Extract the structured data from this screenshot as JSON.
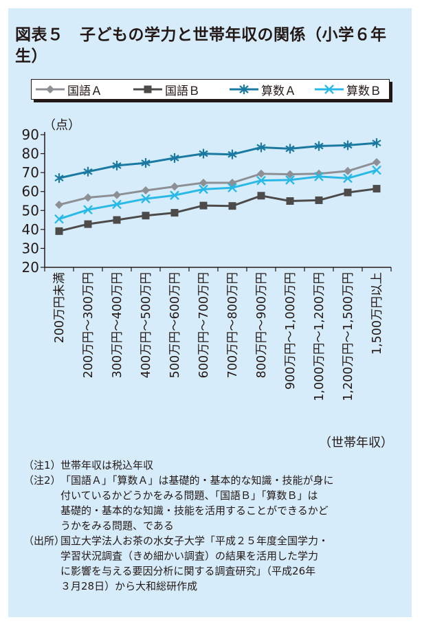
{
  "title": "図表５　子どもの学力と世帯年収の関係（小学６年生）",
  "colors": {
    "background": "#d6ecfa",
    "kokugo_a": "#8c8f93",
    "kokugo_b": "#4d4b4a",
    "sansu_a": "#1a79a0",
    "sansu_b": "#28b9e6"
  },
  "chart_data": {
    "type": "line",
    "ylabel": "（点）",
    "xlabel": "（世帯年収）",
    "ylim": [
      20,
      90
    ],
    "yticks": [
      "20",
      "30",
      "40",
      "50",
      "60",
      "70",
      "80",
      "90"
    ],
    "grid": false,
    "legend_position": "top",
    "categories": [
      "200万円未満",
      "200万円〜300万円",
      "300万円〜400万円",
      "400万円〜500万円",
      "500万円〜600万円",
      "600万円〜700万円",
      "700万円〜800万円",
      "800万円〜900万円",
      "900万円〜1,000万円",
      "1,000万円〜1,200万円",
      "1,200万円〜1,500万円",
      "1,500万円以上"
    ],
    "series": [
      {
        "name": "国語Ａ",
        "marker": "diamond",
        "color": "#8c8f93",
        "values": [
          53.0,
          56.8,
          58.2,
          60.6,
          62.6,
          64.6,
          64.6,
          69.4,
          69.1,
          69.4,
          70.8,
          75.5
        ]
      },
      {
        "name": "国語Ｂ",
        "marker": "square",
        "color": "#4d4b4a",
        "values": [
          39.1,
          42.8,
          45.0,
          47.3,
          48.8,
          52.6,
          52.4,
          57.8,
          55.0,
          55.4,
          59.5,
          61.5
        ]
      },
      {
        "name": "算数Ａ",
        "marker": "asterisk",
        "color": "#1a79a0",
        "values": [
          67.1,
          70.5,
          73.7,
          75.1,
          77.7,
          80.0,
          79.6,
          83.3,
          82.6,
          84.0,
          84.4,
          85.6
        ]
      },
      {
        "name": "算数Ｂ",
        "marker": "x",
        "color": "#28b9e6",
        "values": [
          45.5,
          50.4,
          53.2,
          56.2,
          58.0,
          61.2,
          62.0,
          65.8,
          66.1,
          67.9,
          67.0,
          71.3
        ]
      }
    ]
  },
  "notes": [
    {
      "label": "（注1）",
      "lines": [
        "世帯年収は税込年収"
      ]
    },
    {
      "label": "（注2）",
      "lines": [
        "「国語Ａ」「算数Ａ」は基礎的・基本的な知識・技能が身に",
        "付いているかどうかをみる問題、「国語Ｂ」「算数Ｂ」は",
        "基礎的・基本的な知識・技能を活用することができるかど",
        "うかをみる問題、である"
      ]
    },
    {
      "label": "（出所）",
      "lines": [
        "国立大学法人お茶の水女子大学「平成２５年度全国学力・",
        "学習状況調査（きめ細かい調査）の結果を活用した学力",
        "に影響を与える要因分析に関する調査研究」（平成26年",
        "３月28日）から大和総研作成"
      ]
    }
  ]
}
